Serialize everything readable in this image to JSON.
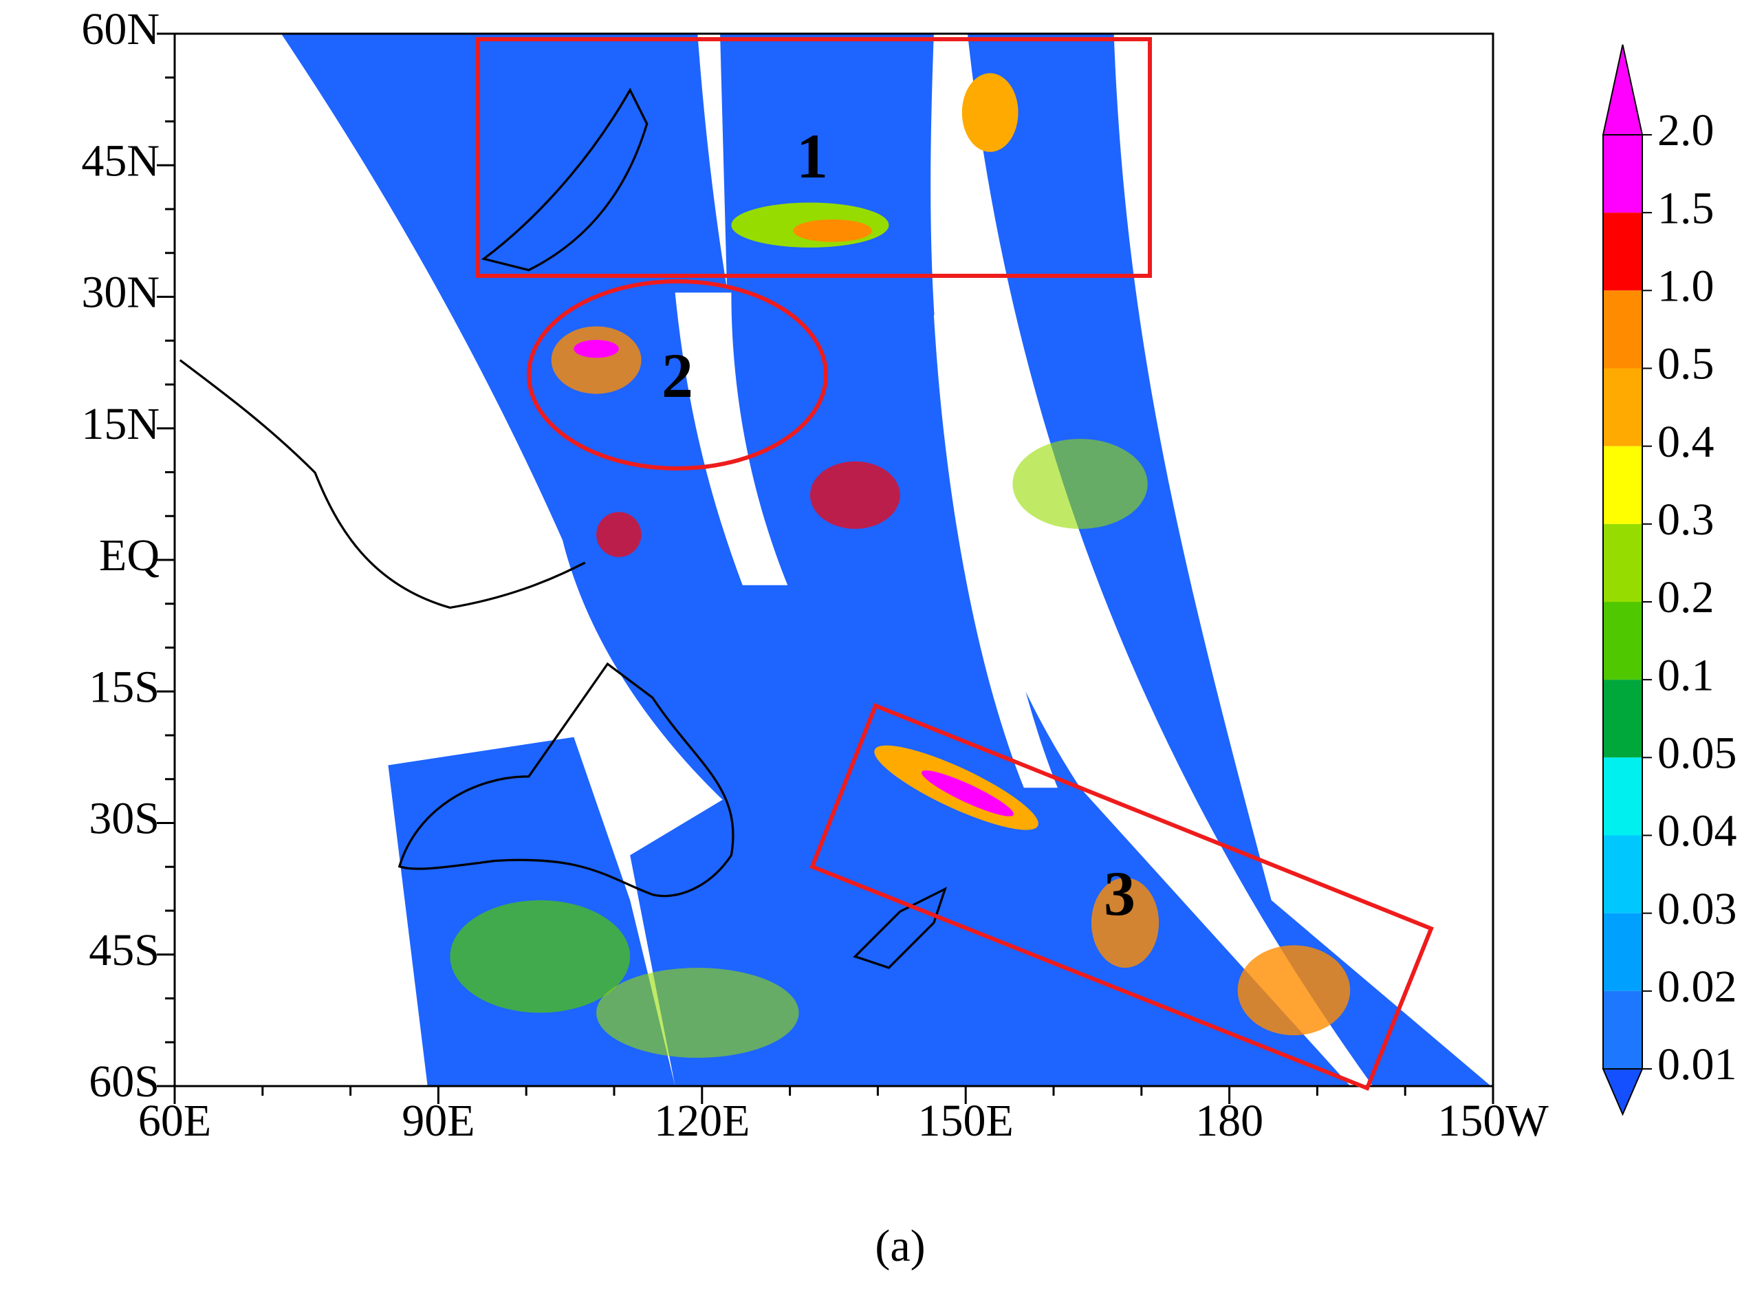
{
  "map": {
    "lat_labels": [
      "60N",
      "45N",
      "30N",
      "15N",
      "EQ",
      "15S",
      "30S",
      "45S",
      "60S"
    ],
    "lon_labels": [
      "60E",
      "90E",
      "120E",
      "150E",
      "180",
      "150W"
    ],
    "colorbar": {
      "labels": [
        "2.0",
        "1.5",
        "1.0",
        "0.5",
        "0.4",
        "0.3",
        "0.2",
        "0.1",
        "0.05",
        "0.04",
        "0.03",
        "0.02",
        "0.01"
      ],
      "colors": [
        "#ff00ff",
        "#ff00ff",
        "#ff0000",
        "#ff8c00",
        "#ffaa00",
        "#ffff00",
        "#96dc00",
        "#50c800",
        "#00a83c",
        "#00f0f0",
        "#00c8ff",
        "#00a0ff",
        "#1e78ff",
        "#1450ff"
      ]
    },
    "regions": [
      "1",
      "2",
      "3"
    ],
    "caption": "(a)"
  }
}
